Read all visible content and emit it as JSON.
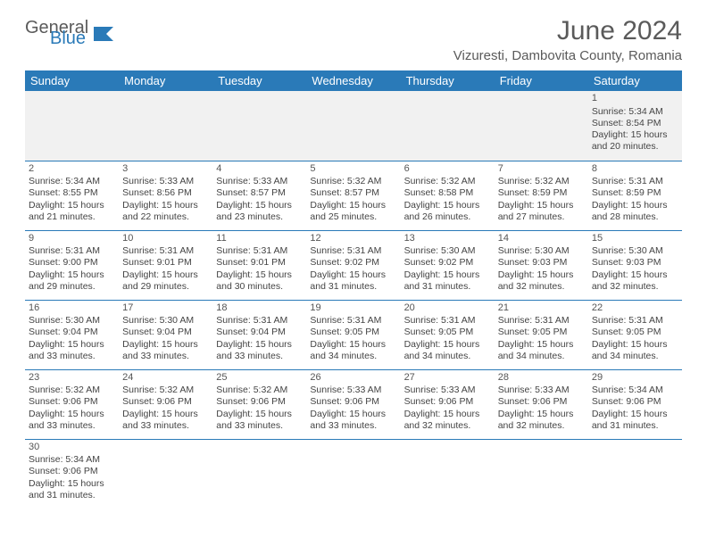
{
  "logo": {
    "part1": "General",
    "part2": "Blue"
  },
  "title": "June 2024",
  "location": "Vizuresti, Dambovita County, Romania",
  "colors": {
    "header_bg": "#2a7ab8",
    "header_text": "#ffffff",
    "grid_line": "#2a7ab8",
    "empty_bg": "#f1f1f1",
    "body_text": "#444444",
    "title_text": "#5a5a5a"
  },
  "weekdays": [
    "Sunday",
    "Monday",
    "Tuesday",
    "Wednesday",
    "Thursday",
    "Friday",
    "Saturday"
  ],
  "weeks": [
    [
      null,
      null,
      null,
      null,
      null,
      null,
      {
        "n": "1",
        "sr": "5:34 AM",
        "ss": "8:54 PM",
        "dl": "15 hours and 20 minutes."
      }
    ],
    [
      {
        "n": "2",
        "sr": "5:34 AM",
        "ss": "8:55 PM",
        "dl": "15 hours and 21 minutes."
      },
      {
        "n": "3",
        "sr": "5:33 AM",
        "ss": "8:56 PM",
        "dl": "15 hours and 22 minutes."
      },
      {
        "n": "4",
        "sr": "5:33 AM",
        "ss": "8:57 PM",
        "dl": "15 hours and 23 minutes."
      },
      {
        "n": "5",
        "sr": "5:32 AM",
        "ss": "8:57 PM",
        "dl": "15 hours and 25 minutes."
      },
      {
        "n": "6",
        "sr": "5:32 AM",
        "ss": "8:58 PM",
        "dl": "15 hours and 26 minutes."
      },
      {
        "n": "7",
        "sr": "5:32 AM",
        "ss": "8:59 PM",
        "dl": "15 hours and 27 minutes."
      },
      {
        "n": "8",
        "sr": "5:31 AM",
        "ss": "8:59 PM",
        "dl": "15 hours and 28 minutes."
      }
    ],
    [
      {
        "n": "9",
        "sr": "5:31 AM",
        "ss": "9:00 PM",
        "dl": "15 hours and 29 minutes."
      },
      {
        "n": "10",
        "sr": "5:31 AM",
        "ss": "9:01 PM",
        "dl": "15 hours and 29 minutes."
      },
      {
        "n": "11",
        "sr": "5:31 AM",
        "ss": "9:01 PM",
        "dl": "15 hours and 30 minutes."
      },
      {
        "n": "12",
        "sr": "5:31 AM",
        "ss": "9:02 PM",
        "dl": "15 hours and 31 minutes."
      },
      {
        "n": "13",
        "sr": "5:30 AM",
        "ss": "9:02 PM",
        "dl": "15 hours and 31 minutes."
      },
      {
        "n": "14",
        "sr": "5:30 AM",
        "ss": "9:03 PM",
        "dl": "15 hours and 32 minutes."
      },
      {
        "n": "15",
        "sr": "5:30 AM",
        "ss": "9:03 PM",
        "dl": "15 hours and 32 minutes."
      }
    ],
    [
      {
        "n": "16",
        "sr": "5:30 AM",
        "ss": "9:04 PM",
        "dl": "15 hours and 33 minutes."
      },
      {
        "n": "17",
        "sr": "5:30 AM",
        "ss": "9:04 PM",
        "dl": "15 hours and 33 minutes."
      },
      {
        "n": "18",
        "sr": "5:31 AM",
        "ss": "9:04 PM",
        "dl": "15 hours and 33 minutes."
      },
      {
        "n": "19",
        "sr": "5:31 AM",
        "ss": "9:05 PM",
        "dl": "15 hours and 34 minutes."
      },
      {
        "n": "20",
        "sr": "5:31 AM",
        "ss": "9:05 PM",
        "dl": "15 hours and 34 minutes."
      },
      {
        "n": "21",
        "sr": "5:31 AM",
        "ss": "9:05 PM",
        "dl": "15 hours and 34 minutes."
      },
      {
        "n": "22",
        "sr": "5:31 AM",
        "ss": "9:05 PM",
        "dl": "15 hours and 34 minutes."
      }
    ],
    [
      {
        "n": "23",
        "sr": "5:32 AM",
        "ss": "9:06 PM",
        "dl": "15 hours and 33 minutes."
      },
      {
        "n": "24",
        "sr": "5:32 AM",
        "ss": "9:06 PM",
        "dl": "15 hours and 33 minutes."
      },
      {
        "n": "25",
        "sr": "5:32 AM",
        "ss": "9:06 PM",
        "dl": "15 hours and 33 minutes."
      },
      {
        "n": "26",
        "sr": "5:33 AM",
        "ss": "9:06 PM",
        "dl": "15 hours and 33 minutes."
      },
      {
        "n": "27",
        "sr": "5:33 AM",
        "ss": "9:06 PM",
        "dl": "15 hours and 32 minutes."
      },
      {
        "n": "28",
        "sr": "5:33 AM",
        "ss": "9:06 PM",
        "dl": "15 hours and 32 minutes."
      },
      {
        "n": "29",
        "sr": "5:34 AM",
        "ss": "9:06 PM",
        "dl": "15 hours and 31 minutes."
      }
    ],
    [
      {
        "n": "30",
        "sr": "5:34 AM",
        "ss": "9:06 PM",
        "dl": "15 hours and 31 minutes."
      },
      null,
      null,
      null,
      null,
      null,
      null
    ]
  ],
  "labels": {
    "sunrise": "Sunrise:",
    "sunset": "Sunset:",
    "daylight": "Daylight:"
  }
}
